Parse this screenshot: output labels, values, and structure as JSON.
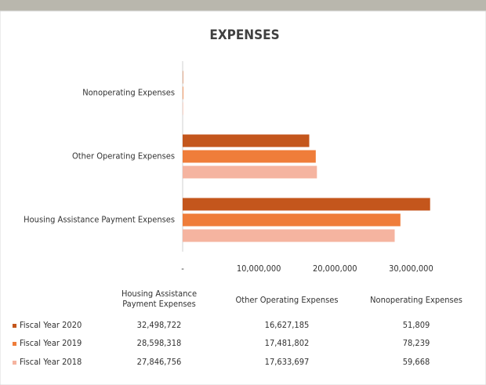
{
  "chart_data": {
    "type": "hbar",
    "title": "EXPENSES",
    "categories": [
      "Housing Assistance Payment Expenses",
      "Other Operating Expenses",
      "Nonoperating Expenses"
    ],
    "series": [
      {
        "name": "Fiscal Year 2020",
        "color": "#c4561c",
        "values": [
          32498722,
          16627185,
          51809
        ],
        "value_labels": [
          "32,498,722",
          "16,627,185",
          "51,809"
        ]
      },
      {
        "name": "Fiscal Year 2019",
        "color": "#ef7d3a",
        "values": [
          28598318,
          17481802,
          78239
        ],
        "value_labels": [
          "28,598,318",
          "17,481,802",
          "78,239"
        ]
      },
      {
        "name": "Fiscal Year 2018",
        "color": "#f5b4a0",
        "values": [
          27846756,
          17633697,
          59668
        ],
        "value_labels": [
          "27,846,756",
          "17,633,697",
          "59,668"
        ]
      }
    ],
    "xlim": [
      0,
      35000000
    ],
    "xticks": [
      {
        "value": 0,
        "label": "-"
      },
      {
        "value": 10000000,
        "label": "10,000,000"
      },
      {
        "value": 20000000,
        "label": "20,000,000"
      },
      {
        "value": 30000000,
        "label": "30,000,000"
      }
    ]
  }
}
